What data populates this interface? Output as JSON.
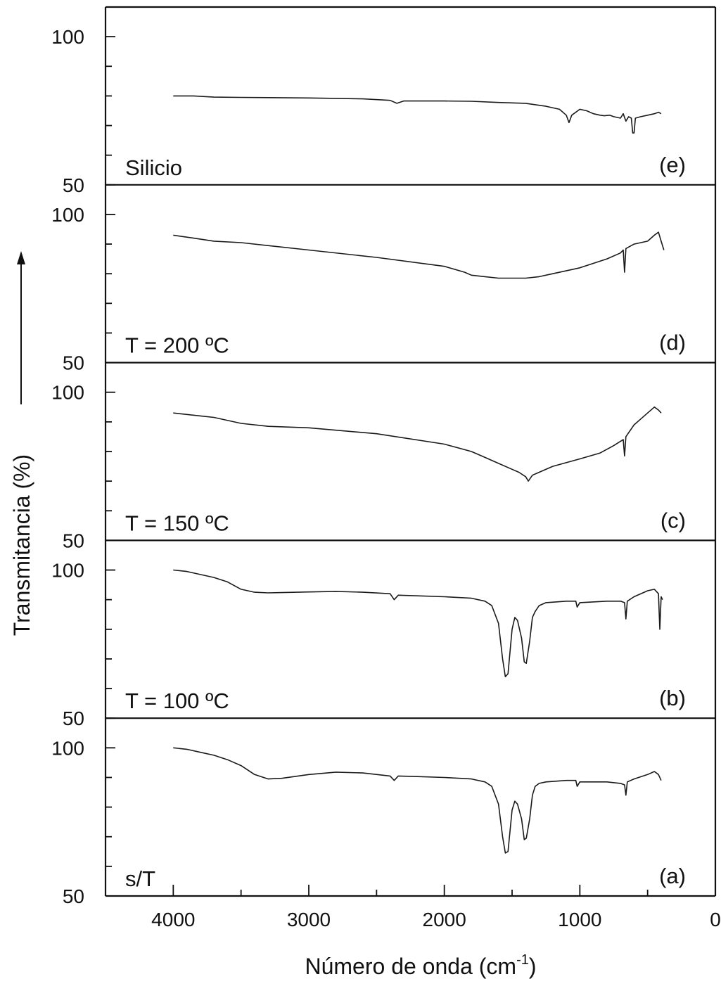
{
  "chart_data": {
    "type": "line",
    "xlabel": "Número de onda (cm",
    "xlabel_sup": "-1",
    "xlabel_close": ")",
    "ylabel": "Transmitancia (%)",
    "xlim": [
      4500,
      0
    ],
    "x_ticks": [
      4000,
      3000,
      2000,
      1000,
      0
    ],
    "x_tick_labels": [
      "4000",
      "3000",
      "2000",
      "1000",
      "0"
    ],
    "ylim": [
      50,
      110
    ],
    "y_tick_labels": [
      "100",
      "50"
    ],
    "panels": [
      {
        "name": "Silicio",
        "letter": "(e)",
        "points": [
          [
            4000,
            80
          ],
          [
            3850,
            80
          ],
          [
            3700,
            79.6
          ],
          [
            3500,
            79.5
          ],
          [
            3000,
            79.3
          ],
          [
            2600,
            79
          ],
          [
            2400,
            78.5
          ],
          [
            2350,
            77.5
          ],
          [
            2300,
            78.3
          ],
          [
            2000,
            78.3
          ],
          [
            1800,
            78.2
          ],
          [
            1600,
            77.8
          ],
          [
            1400,
            77.5
          ],
          [
            1250,
            76.5
          ],
          [
            1150,
            75.5
          ],
          [
            1100,
            73.5
          ],
          [
            1080,
            71
          ],
          [
            1060,
            73.5
          ],
          [
            1000,
            75.5
          ],
          [
            950,
            75
          ],
          [
            900,
            74
          ],
          [
            850,
            73.5
          ],
          [
            820,
            73.3
          ],
          [
            780,
            73.5
          ],
          [
            750,
            73
          ],
          [
            700,
            72.5
          ],
          [
            680,
            74
          ],
          [
            660,
            71.5
          ],
          [
            640,
            73
          ],
          [
            620,
            72.5
          ],
          [
            610,
            67.5
          ],
          [
            600,
            67.5
          ],
          [
            590,
            72.5
          ],
          [
            550,
            73
          ],
          [
            500,
            73.5
          ],
          [
            450,
            74
          ],
          [
            420,
            74.5
          ],
          [
            400,
            74
          ]
        ]
      },
      {
        "name": "T = 200 ºC",
        "letter": "(d)",
        "points": [
          [
            4000,
            93
          ],
          [
            3850,
            92
          ],
          [
            3700,
            91
          ],
          [
            3500,
            90.5
          ],
          [
            3000,
            88
          ],
          [
            2500,
            85.5
          ],
          [
            2000,
            82.5
          ],
          [
            1850,
            80.5
          ],
          [
            1800,
            79.5
          ],
          [
            1700,
            79
          ],
          [
            1600,
            78.5
          ],
          [
            1500,
            78.5
          ],
          [
            1400,
            78.5
          ],
          [
            1300,
            79
          ],
          [
            1200,
            80
          ],
          [
            1000,
            82
          ],
          [
            800,
            85
          ],
          [
            700,
            87
          ],
          [
            680,
            88
          ],
          [
            670,
            80.5
          ],
          [
            660,
            88.5
          ],
          [
            600,
            90
          ],
          [
            500,
            91
          ],
          [
            450,
            93
          ],
          [
            420,
            94
          ],
          [
            400,
            91
          ],
          [
            380,
            88
          ]
        ]
      },
      {
        "name": "T = 150 ºC",
        "letter": "(c)",
        "points": [
          [
            4000,
            93
          ],
          [
            3800,
            92
          ],
          [
            3700,
            91.5
          ],
          [
            3500,
            89.5
          ],
          [
            3300,
            88.5
          ],
          [
            3000,
            88
          ],
          [
            2500,
            86
          ],
          [
            2000,
            82.5
          ],
          [
            1800,
            80
          ],
          [
            1700,
            78
          ],
          [
            1600,
            76
          ],
          [
            1500,
            74
          ],
          [
            1450,
            73
          ],
          [
            1400,
            71.5
          ],
          [
            1380,
            70
          ],
          [
            1350,
            72
          ],
          [
            1300,
            73
          ],
          [
            1200,
            75
          ],
          [
            1000,
            77.5
          ],
          [
            850,
            79.5
          ],
          [
            750,
            82
          ],
          [
            680,
            84
          ],
          [
            670,
            78.5
          ],
          [
            660,
            85
          ],
          [
            600,
            89
          ],
          [
            550,
            91
          ],
          [
            500,
            93
          ],
          [
            450,
            95
          ],
          [
            420,
            94
          ],
          [
            400,
            93
          ]
        ]
      },
      {
        "name": "T = 100 ºC",
        "letter": "(b)",
        "points": [
          [
            4000,
            100
          ],
          [
            3900,
            99.5
          ],
          [
            3800,
            98.5
          ],
          [
            3700,
            97.5
          ],
          [
            3600,
            96
          ],
          [
            3500,
            93.5
          ],
          [
            3400,
            92.5
          ],
          [
            3300,
            92.3
          ],
          [
            3200,
            92.4
          ],
          [
            3000,
            92.6
          ],
          [
            2800,
            92.8
          ],
          [
            2600,
            92.5
          ],
          [
            2400,
            92
          ],
          [
            2370,
            90
          ],
          [
            2340,
            91.5
          ],
          [
            2200,
            91.3
          ],
          [
            2000,
            91
          ],
          [
            1800,
            90.5
          ],
          [
            1700,
            89.5
          ],
          [
            1650,
            88
          ],
          [
            1600,
            82
          ],
          [
            1570,
            70
          ],
          [
            1550,
            64
          ],
          [
            1530,
            65
          ],
          [
            1500,
            80
          ],
          [
            1480,
            84
          ],
          [
            1460,
            83
          ],
          [
            1430,
            77
          ],
          [
            1410,
            69
          ],
          [
            1395,
            68.5
          ],
          [
            1370,
            76
          ],
          [
            1350,
            84
          ],
          [
            1330,
            86
          ],
          [
            1300,
            88
          ],
          [
            1250,
            89
          ],
          [
            1100,
            89.5
          ],
          [
            1030,
            89.5
          ],
          [
            1020,
            87.5
          ],
          [
            1000,
            89
          ],
          [
            800,
            89.5
          ],
          [
            700,
            89.5
          ],
          [
            670,
            89
          ],
          [
            660,
            83.5
          ],
          [
            650,
            89.5
          ],
          [
            600,
            91
          ],
          [
            500,
            93
          ],
          [
            450,
            93.5
          ],
          [
            420,
            92
          ],
          [
            410,
            80
          ],
          [
            400,
            91
          ],
          [
            390,
            90
          ]
        ]
      },
      {
        "name": "s/T",
        "letter": "(a)",
        "points": [
          [
            4000,
            100
          ],
          [
            3900,
            99.5
          ],
          [
            3800,
            98.5
          ],
          [
            3700,
            97.5
          ],
          [
            3600,
            96
          ],
          [
            3500,
            94
          ],
          [
            3400,
            91
          ],
          [
            3300,
            89.5
          ],
          [
            3200,
            89.7
          ],
          [
            3000,
            91
          ],
          [
            2800,
            91.8
          ],
          [
            2600,
            91.5
          ],
          [
            2400,
            90.5
          ],
          [
            2370,
            89
          ],
          [
            2340,
            90.5
          ],
          [
            2200,
            90.3
          ],
          [
            2000,
            90
          ],
          [
            1800,
            89.5
          ],
          [
            1700,
            88.5
          ],
          [
            1650,
            87
          ],
          [
            1600,
            81
          ],
          [
            1570,
            70
          ],
          [
            1550,
            64.5
          ],
          [
            1530,
            65
          ],
          [
            1500,
            79
          ],
          [
            1480,
            82
          ],
          [
            1460,
            81
          ],
          [
            1430,
            76
          ],
          [
            1410,
            69
          ],
          [
            1395,
            69.5
          ],
          [
            1370,
            76
          ],
          [
            1350,
            84
          ],
          [
            1330,
            87
          ],
          [
            1300,
            88
          ],
          [
            1250,
            88.5
          ],
          [
            1100,
            89
          ],
          [
            1030,
            89
          ],
          [
            1020,
            87
          ],
          [
            1000,
            88.5
          ],
          [
            800,
            88.5
          ],
          [
            700,
            88
          ],
          [
            670,
            87.5
          ],
          [
            660,
            84
          ],
          [
            650,
            88.5
          ],
          [
            600,
            89.5
          ],
          [
            500,
            91
          ],
          [
            450,
            92
          ],
          [
            420,
            91
          ],
          [
            400,
            89
          ]
        ]
      }
    ]
  }
}
